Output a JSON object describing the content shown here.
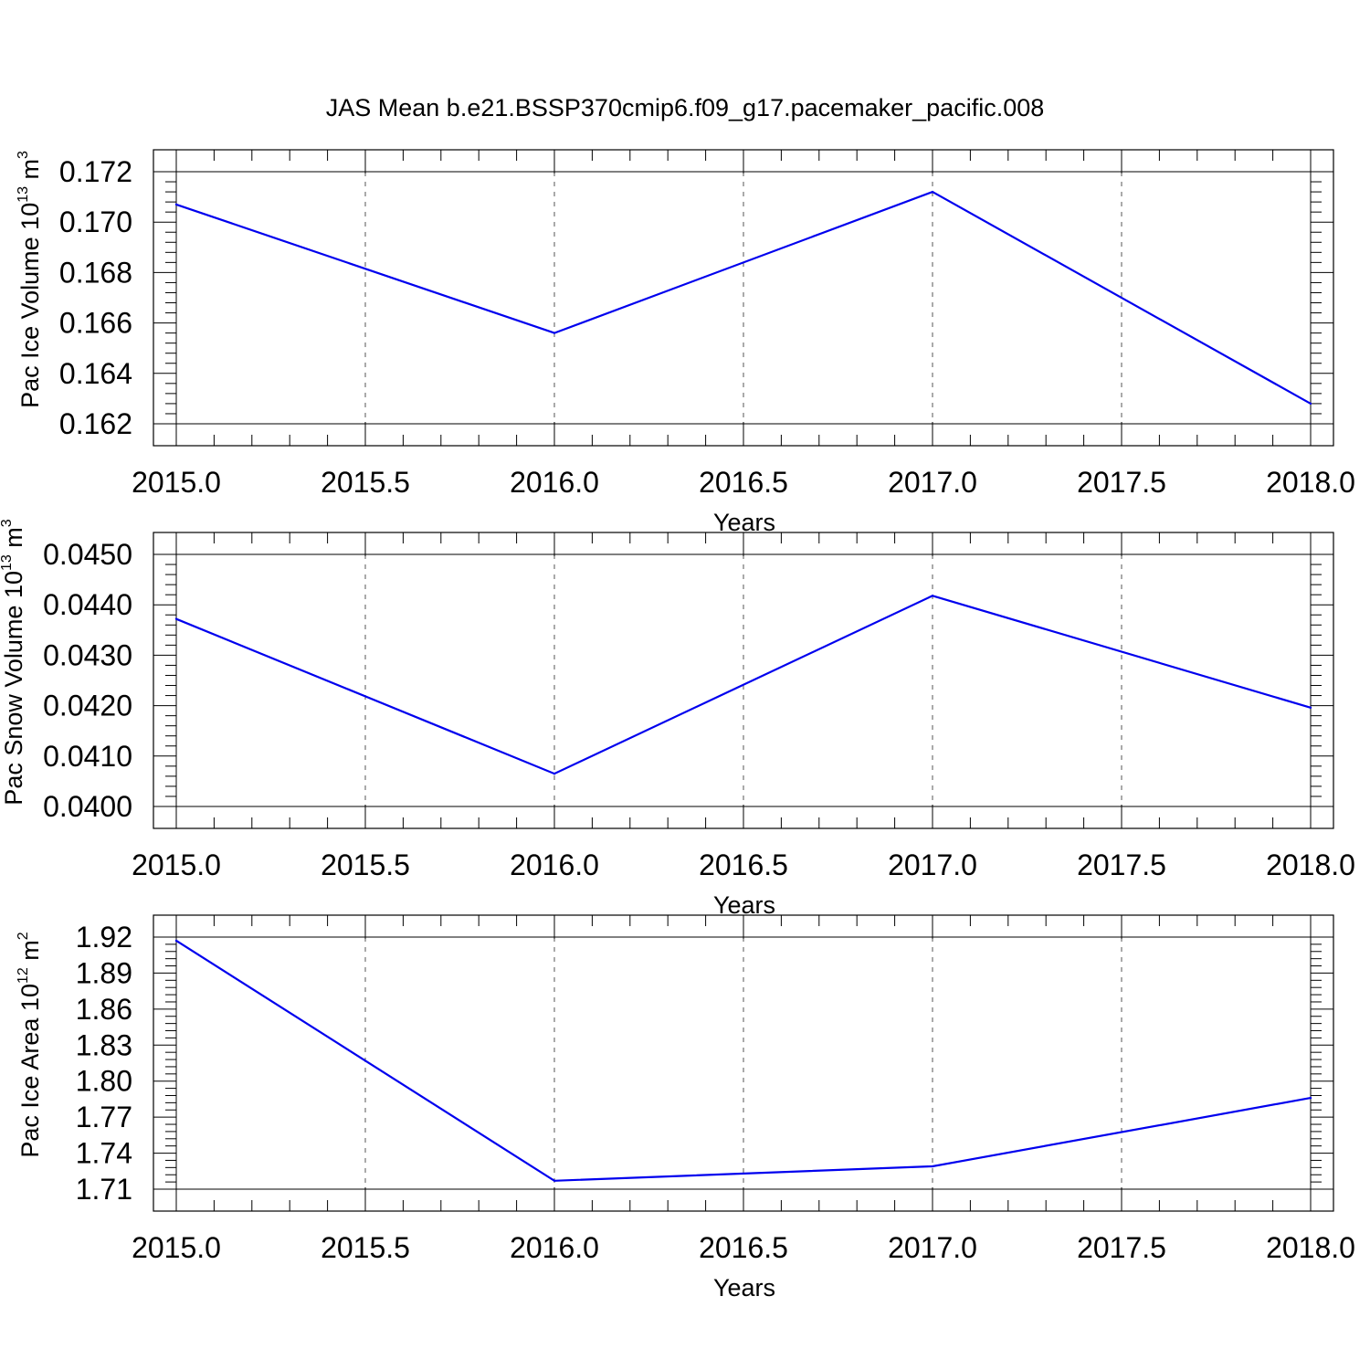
{
  "figure_title": "JAS Mean b.e21.BSSP370cmip6.f09_g17.pacemaker_pacific.008",
  "colors": {
    "line": "#0000ee",
    "grid": "#555555",
    "axes": "#000000"
  },
  "chart_data": [
    {
      "type": "line",
      "xlabel": "Years",
      "ylabel": {
        "main": "Pac Ice Volume 10",
        "sup": "13",
        "unit": " m",
        "unit_sup": "3"
      },
      "x": [
        2015,
        2016,
        2017,
        2018
      ],
      "values": [
        0.1707,
        0.1656,
        0.1712,
        0.1628
      ],
      "xlim": [
        2015.0,
        2018.0
      ],
      "ylim": [
        0.162,
        0.172
      ],
      "x_ticks": [
        "2015.0",
        "2015.5",
        "2016.0",
        "2016.5",
        "2017.0",
        "2017.5",
        "2018.0"
      ],
      "y_ticks": [
        "0.162",
        "0.164",
        "0.166",
        "0.168",
        "0.170",
        "0.172"
      ],
      "grid": "vertical dashed"
    },
    {
      "type": "line",
      "xlabel": "Years",
      "ylabel": {
        "main": "Pac Snow Volume 10",
        "sup": "13",
        "unit": " m",
        "unit_sup": "3"
      },
      "x": [
        2015,
        2016,
        2017,
        2018
      ],
      "values": [
        0.04372,
        0.04065,
        0.04418,
        0.04196
      ],
      "xlim": [
        2015.0,
        2018.0
      ],
      "ylim": [
        0.04,
        0.045
      ],
      "x_ticks": [
        "2015.0",
        "2015.5",
        "2016.0",
        "2016.5",
        "2017.0",
        "2017.5",
        "2018.0"
      ],
      "y_ticks": [
        "0.0400",
        "0.0410",
        "0.0420",
        "0.0430",
        "0.0440",
        "0.0450"
      ],
      "grid": "vertical dashed"
    },
    {
      "type": "line",
      "xlabel": "Years",
      "ylabel": {
        "main": "Pac Ice Area 10",
        "sup": "12",
        "unit": " m",
        "unit_sup": "2"
      },
      "x": [
        2015,
        2016,
        2017,
        2018
      ],
      "values": [
        1.917,
        1.717,
        1.729,
        1.786
      ],
      "xlim": [
        2015.0,
        2018.0
      ],
      "ylim": [
        1.71,
        1.92
      ],
      "x_ticks": [
        "2015.0",
        "2015.5",
        "2016.0",
        "2016.5",
        "2017.0",
        "2017.5",
        "2018.0"
      ],
      "y_ticks": [
        "1.71",
        "1.74",
        "1.77",
        "1.80",
        "1.83",
        "1.86",
        "1.89",
        "1.92"
      ],
      "grid": "vertical dashed"
    }
  ]
}
